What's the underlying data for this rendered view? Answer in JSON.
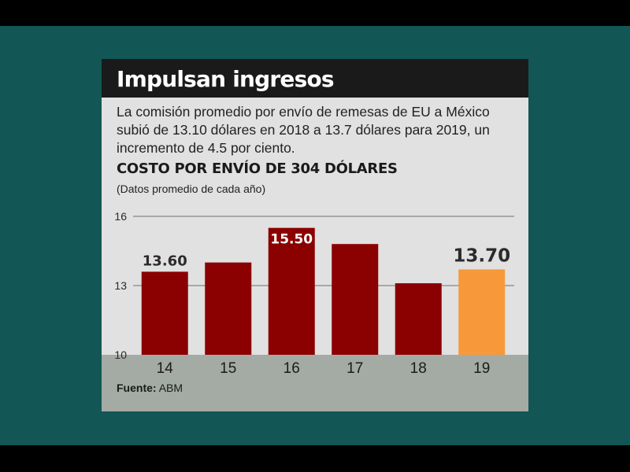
{
  "header": {
    "title": "Impulsan ingresos"
  },
  "description": "La comisión promedio por envío de remesas de EU a México subió de 13.10 dólares en 2018 a 13.7 dólares para 2019, un incremento de 4.5 por ciento.",
  "chart_heading": "COSTO POR ENVÍO DE 304 DÓLARES",
  "chart_subheading": "(Datos promedio de cada año)",
  "source": {
    "label": "Fuente:",
    "value": "ABM"
  },
  "colors": {
    "backdrop": "#125656",
    "card": "#e1e1e1",
    "title_bar": "#1a1a1a",
    "bar": "#8b0000",
    "bar_highlight": "#f7993a",
    "footer_band": "#a4aba4"
  },
  "chart_data": {
    "type": "bar",
    "categories": [
      "14",
      "15",
      "16",
      "17",
      "18",
      "19"
    ],
    "values": [
      13.6,
      14.0,
      15.5,
      14.8,
      13.1,
      13.7
    ],
    "data_labels": [
      "13.60",
      "",
      "15.50",
      "",
      "",
      "13.70"
    ],
    "highlight_index": 5,
    "ylim": [
      10,
      16
    ],
    "yticks": [
      10,
      13,
      16
    ],
    "xlabel": "",
    "ylabel": "",
    "grid": true
  }
}
